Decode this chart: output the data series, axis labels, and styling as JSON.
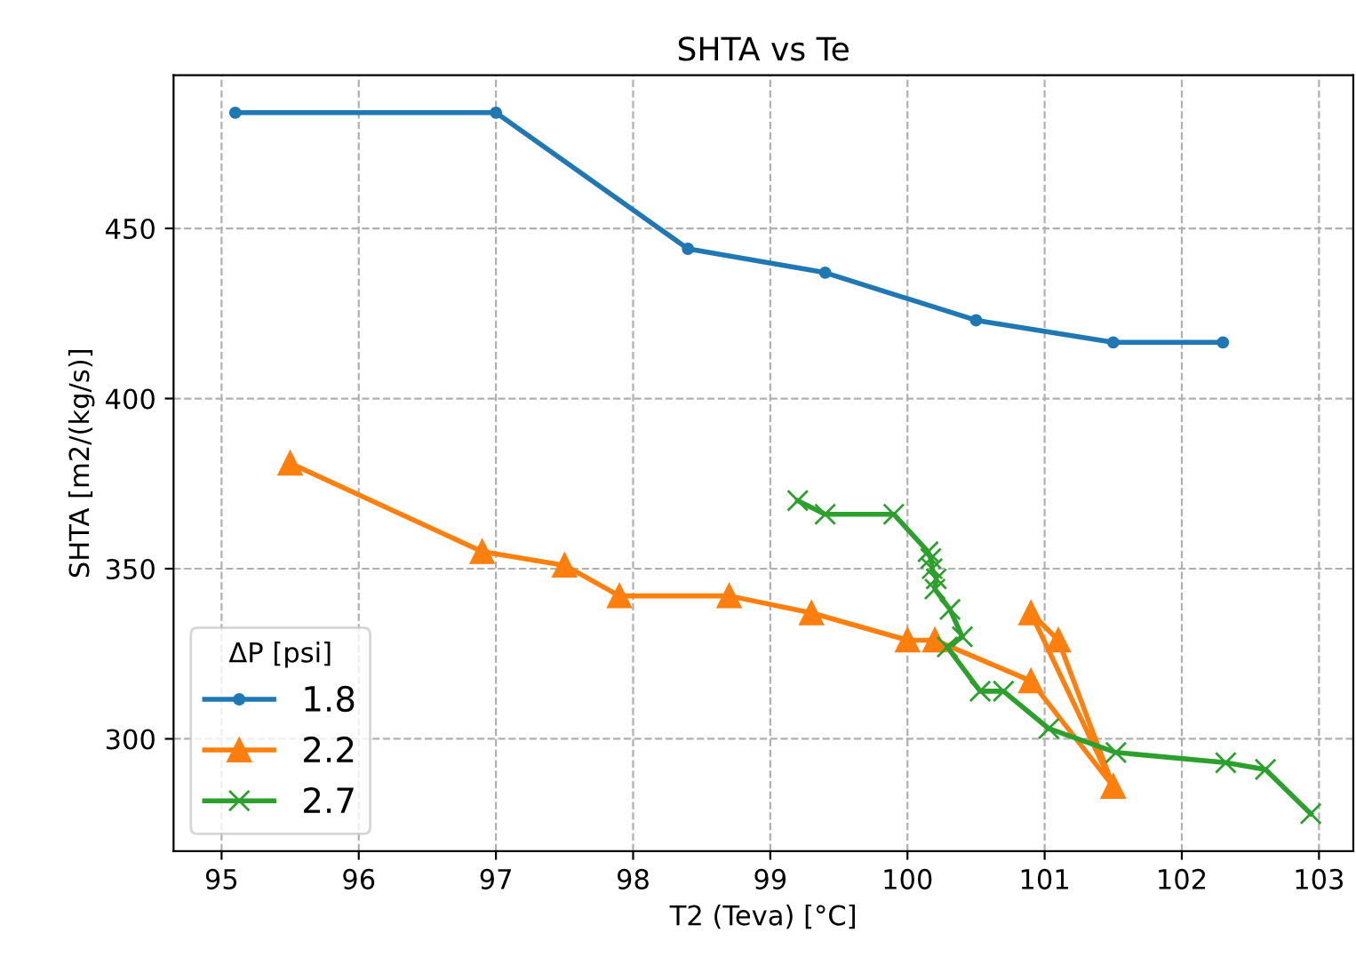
{
  "chart_data": {
    "type": "line",
    "title": "SHTA vs Te",
    "xlabel": "T2 (Teva) [°C]",
    "ylabel": "SHTA [m2/(kg/s)]",
    "legend_title": "ΔP [psi]",
    "legend": "bottom left",
    "grid": true,
    "line_style": "solid",
    "xlim": [
      94.65,
      103.25
    ],
    "xticks": [
      95,
      96,
      97,
      98,
      99,
      100,
      101,
      102,
      103
    ],
    "ylim": [
      267,
      495
    ],
    "yticks": [
      300,
      350,
      400,
      450
    ],
    "series": [
      {
        "name": "1.8",
        "color": "#1f77b4",
        "marker": "circle",
        "x": [
          95.1,
          97.0,
          98.4,
          99.4,
          100.5,
          101.5,
          102.3
        ],
        "values": [
          484,
          484,
          444,
          437,
          423,
          416.5,
          416.5
        ]
      },
      {
        "name": "2.2",
        "color": "#ff7f0e",
        "marker": "triangle",
        "x": [
          95.5,
          96.9,
          97.5,
          97.9,
          98.7,
          99.3,
          100.0,
          100.2,
          100.9,
          101.5,
          100.9,
          101.1,
          101.5
        ],
        "values": [
          381,
          355,
          351,
          342,
          342,
          337,
          329,
          329,
          317,
          286,
          337,
          329,
          286
        ]
      },
      {
        "name": "2.7",
        "color": "#2ca02c",
        "marker": "cross",
        "x": [
          99.2,
          99.4,
          99.9,
          100.15,
          100.17,
          100.18,
          100.21,
          100.2,
          100.31,
          100.4,
          100.29,
          100.53,
          100.7,
          101.03,
          101.52,
          102.32,
          102.61,
          102.94
        ],
        "values": [
          370,
          366,
          366,
          355,
          353,
          350,
          347,
          344,
          338,
          330,
          327,
          314,
          314,
          303,
          296,
          293,
          291,
          278
        ]
      }
    ]
  }
}
